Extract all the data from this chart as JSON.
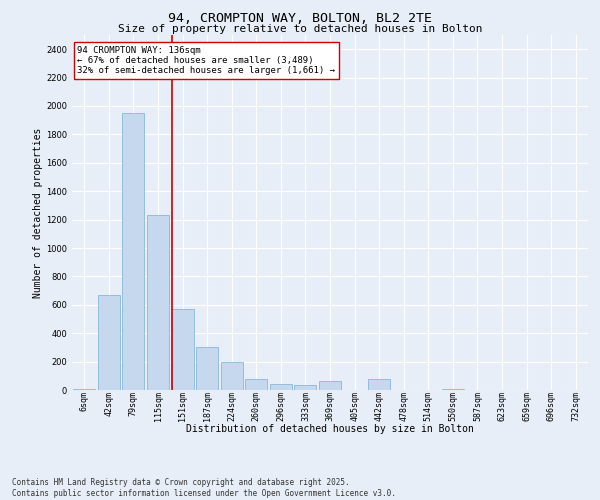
{
  "title": "94, CROMPTON WAY, BOLTON, BL2 2TE",
  "subtitle": "Size of property relative to detached houses in Bolton",
  "xlabel": "Distribution of detached houses by size in Bolton",
  "ylabel": "Number of detached properties",
  "bar_color": "#c5d8ed",
  "bar_edge_color": "#7aafd4",
  "background_color": "#e8eef7",
  "grid_color": "#ffffff",
  "categories": [
    "6sqm",
    "42sqm",
    "79sqm",
    "115sqm",
    "151sqm",
    "187sqm",
    "224sqm",
    "260sqm",
    "296sqm",
    "333sqm",
    "369sqm",
    "405sqm",
    "442sqm",
    "478sqm",
    "514sqm",
    "550sqm",
    "587sqm",
    "623sqm",
    "659sqm",
    "696sqm",
    "732sqm"
  ],
  "values": [
    10,
    670,
    1950,
    1230,
    570,
    300,
    195,
    80,
    40,
    35,
    60,
    0,
    75,
    0,
    0,
    5,
    0,
    0,
    0,
    0,
    0
  ],
  "ylim": [
    0,
    2500
  ],
  "yticks": [
    0,
    200,
    400,
    600,
    800,
    1000,
    1200,
    1400,
    1600,
    1800,
    2000,
    2200,
    2400
  ],
  "property_line_color": "#cc0000",
  "annotation_text": "94 CROMPTON WAY: 136sqm\n← 67% of detached houses are smaller (3,489)\n32% of semi-detached houses are larger (1,661) →",
  "footer": "Contains HM Land Registry data © Crown copyright and database right 2025.\nContains public sector information licensed under the Open Government Licence v3.0.",
  "title_fontsize": 9.5,
  "subtitle_fontsize": 8,
  "annotation_fontsize": 6.5,
  "axis_label_fontsize": 7,
  "tick_fontsize": 6,
  "footer_fontsize": 5.5
}
